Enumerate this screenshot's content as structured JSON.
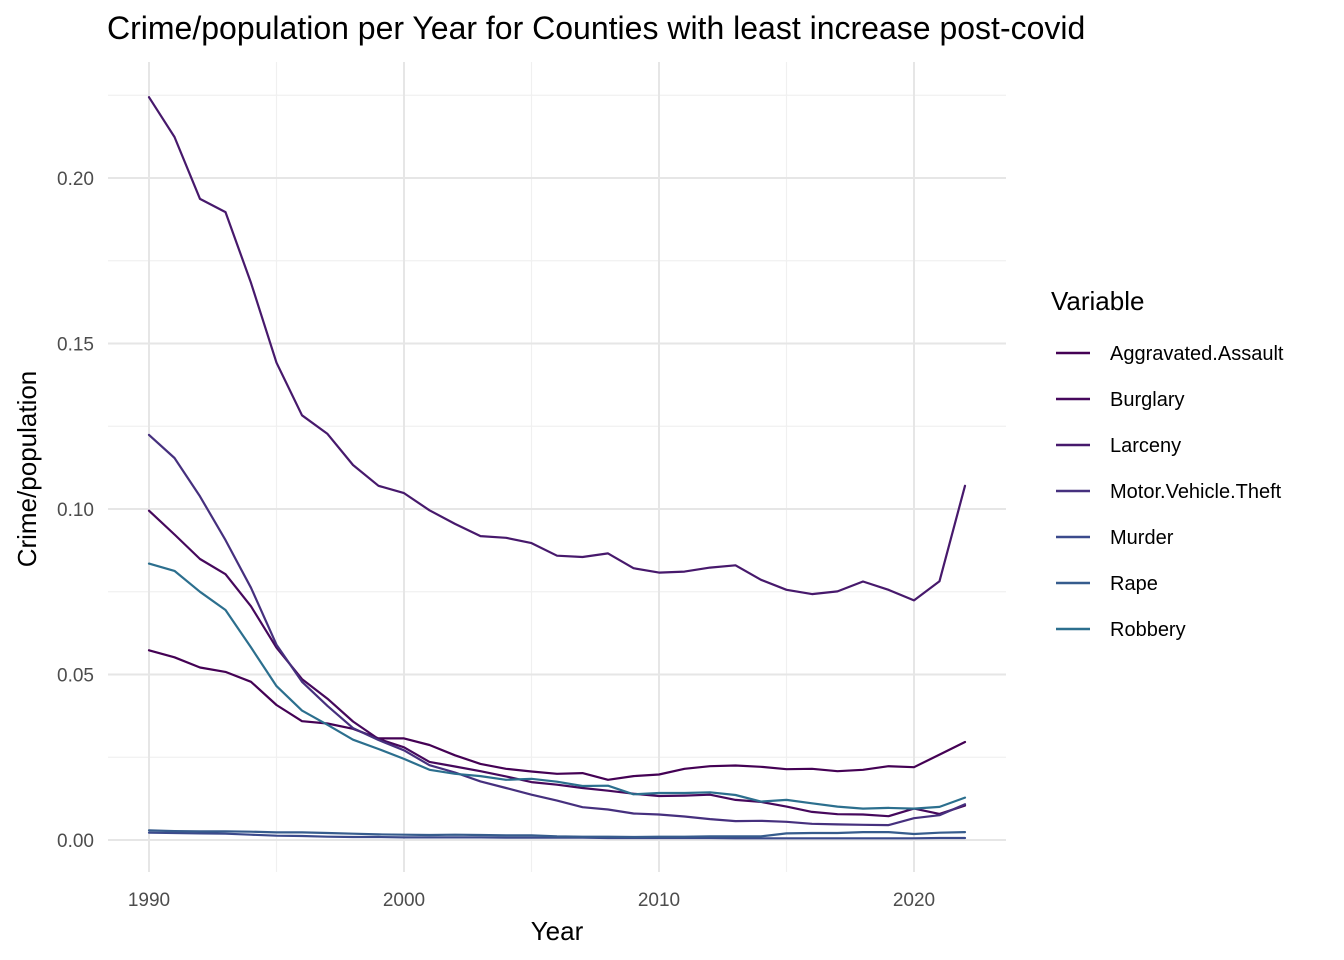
{
  "chart_data": {
    "type": "line",
    "title": "Crime/population per Year for Counties with least increase post-covid",
    "xlabel": "Year",
    "ylabel": "Crime/population",
    "xlim": [
      1990,
      2022
    ],
    "ylim": [
      -0.008,
      0.226
    ],
    "x_ticks": [
      1990,
      2000,
      2010,
      2020
    ],
    "y_ticks": [
      0.0,
      0.05,
      0.1,
      0.15,
      0.2
    ],
    "y_tick_labels": [
      "0.00",
      "0.05",
      "0.10",
      "0.15",
      "0.20"
    ],
    "grid": true,
    "legend": {
      "title": "Variable",
      "position": "right"
    },
    "x": [
      1990,
      1991,
      1992,
      1993,
      1994,
      1995,
      1996,
      1997,
      1998,
      1999,
      2000,
      2001,
      2002,
      2003,
      2004,
      2005,
      2006,
      2007,
      2008,
      2009,
      2010,
      2011,
      2012,
      2013,
      2014,
      2015,
      2016,
      2017,
      2018,
      2019,
      2020,
      2021,
      2022
    ],
    "series": [
      {
        "name": "Aggravated.Assault",
        "color": "#440154",
        "values": [
          0.0573,
          0.0552,
          0.0521,
          0.0508,
          0.0478,
          0.0408,
          0.0359,
          0.0352,
          0.0336,
          0.0307,
          0.0307,
          0.0287,
          0.0256,
          0.023,
          0.0215,
          0.0207,
          0.02,
          0.0202,
          0.0182,
          0.0193,
          0.0198,
          0.0215,
          0.0223,
          0.0225,
          0.0221,
          0.0214,
          0.0215,
          0.0208,
          0.0212,
          0.0223,
          0.022,
          0.0258,
          0.0296
        ]
      },
      {
        "name": "Burglary",
        "color": "#46085c",
        "values": [
          0.0995,
          0.0923,
          0.0849,
          0.0803,
          0.0706,
          0.0581,
          0.0486,
          0.0427,
          0.0358,
          0.0305,
          0.028,
          0.0236,
          0.0222,
          0.0208,
          0.0192,
          0.0175,
          0.0167,
          0.0157,
          0.0149,
          0.014,
          0.0133,
          0.0134,
          0.0137,
          0.0121,
          0.0115,
          0.0101,
          0.0085,
          0.0078,
          0.0077,
          0.0072,
          0.0095,
          0.0079,
          0.0104
        ]
      },
      {
        "name": "Larceny",
        "color": "#47196c",
        "values": [
          0.2244,
          0.2124,
          0.1937,
          0.1897,
          0.1683,
          0.1442,
          0.1283,
          0.1227,
          0.1133,
          0.107,
          0.1048,
          0.0996,
          0.0955,
          0.0918,
          0.0913,
          0.0897,
          0.0859,
          0.0855,
          0.0866,
          0.0821,
          0.0808,
          0.0811,
          0.0823,
          0.083,
          0.0786,
          0.0756,
          0.0743,
          0.0751,
          0.0781,
          0.0756,
          0.0724,
          0.0782,
          0.107
        ]
      },
      {
        "name": "Motor.Vehicle.Theft",
        "color": "#46307e",
        "values": [
          0.1224,
          0.1154,
          0.1038,
          0.0906,
          0.0762,
          0.059,
          0.0478,
          0.0405,
          0.0338,
          0.0302,
          0.0271,
          0.0226,
          0.0204,
          0.0177,
          0.0157,
          0.0137,
          0.0119,
          0.0099,
          0.0092,
          0.008,
          0.0077,
          0.0071,
          0.0063,
          0.0057,
          0.0058,
          0.0055,
          0.0049,
          0.0047,
          0.0046,
          0.0045,
          0.0066,
          0.0075,
          0.0108
        ]
      },
      {
        "name": "Murder",
        "color": "#3b4a8c",
        "values": [
          0.0022,
          0.0021,
          0.002,
          0.0019,
          0.0016,
          0.0013,
          0.0012,
          0.001,
          0.0009,
          0.0009,
          0.0008,
          0.0008,
          0.0008,
          0.0008,
          0.0007,
          0.0007,
          0.0007,
          0.0007,
          0.0006,
          0.0006,
          0.0006,
          0.0006,
          0.0006,
          0.0005,
          0.0005,
          0.0005,
          0.0005,
          0.0005,
          0.0005,
          0.0005,
          0.0005,
          0.0006,
          0.0006
        ]
      },
      {
        "name": "Rape",
        "color": "#365c8d",
        "values": [
          0.0029,
          0.0027,
          0.0026,
          0.0026,
          0.0025,
          0.0023,
          0.0023,
          0.0021,
          0.0019,
          0.0017,
          0.0016,
          0.0015,
          0.0016,
          0.0015,
          0.0014,
          0.0014,
          0.0011,
          0.001,
          0.001,
          0.0009,
          0.001,
          0.001,
          0.0011,
          0.0011,
          0.0011,
          0.002,
          0.0021,
          0.0021,
          0.0024,
          0.0024,
          0.0018,
          0.0022,
          0.0024
        ]
      },
      {
        "name": "Robbery",
        "color": "#2c6f8e",
        "values": [
          0.0835,
          0.0813,
          0.075,
          0.0695,
          0.0582,
          0.0465,
          0.0391,
          0.0348,
          0.0303,
          0.0275,
          0.0245,
          0.0212,
          0.02,
          0.0193,
          0.0182,
          0.0185,
          0.0176,
          0.0163,
          0.0164,
          0.0138,
          0.0142,
          0.0142,
          0.0144,
          0.0136,
          0.0116,
          0.0121,
          0.0111,
          0.0101,
          0.0095,
          0.0097,
          0.0095,
          0.01,
          0.0128
        ]
      }
    ]
  }
}
